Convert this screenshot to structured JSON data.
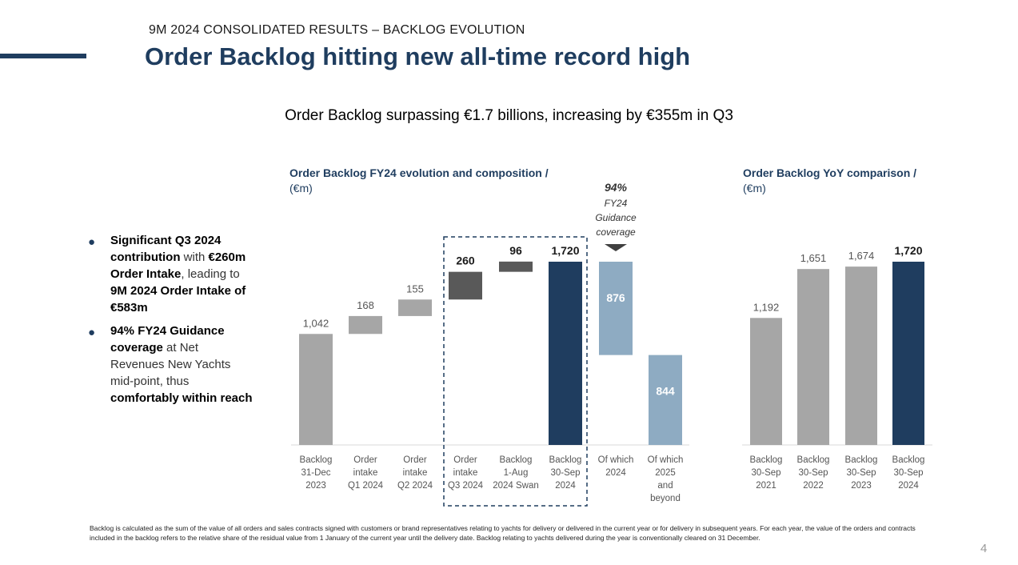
{
  "header": {
    "section_label": "9M 2024 CONSOLIDATED RESULTS – BACKLOG EVOLUTION",
    "title": "Order Backlog hitting new all-time record high",
    "subtitle": "Order Backlog surpassing €1.7 billions, increasing by €355m in Q3"
  },
  "bullets": [
    {
      "parts": [
        {
          "t": "Significant Q3 2024 contribution",
          "b": true
        },
        {
          "t": " with ",
          "b": false
        },
        {
          "t": "€260m Order Intake",
          "b": true
        },
        {
          "t": ", leading to ",
          "b": false
        },
        {
          "t": "9M 2024 Order Intake of €583m",
          "b": true
        }
      ]
    },
    {
      "parts": [
        {
          "t": "94% FY24 Guidance coverage",
          "b": true
        },
        {
          "t": " at Net Revenues New Yachts mid-point, thus ",
          "b": false
        },
        {
          "t": "comfortably within reach",
          "b": true
        }
      ]
    }
  ],
  "footnote": "Backlog is calculated as the sum of the value of all orders and sales contracts signed with customers or brand representatives relating to yachts for delivery or delivered in the current year or for delivery in subsequent years. For each year, the value of the orders and contracts included in the backlog refers to the relative share of the residual value from 1 January of the current year until the delivery date. Backlog relating to yachts delivered during the year is conventionally cleared on 31 December.",
  "page_number": "4",
  "colors": {
    "navy": "#1f3d5f",
    "grey": "#a6a6a6",
    "dark_grey": "#595959",
    "light_blue": "#8eabc2"
  },
  "chart_data": [
    {
      "type": "bar",
      "subtype": "waterfall",
      "title": "Order Backlog FY24 evolution and composition /",
      "unit": "(€m)",
      "categories": [
        "Backlog 31-Dec 2023",
        "Order intake Q1 2024",
        "Order intake Q2 2024",
        "Order intake Q3 2024",
        "Backlog 1-Aug 2024 Swan",
        "Backlog 30-Sep 2024",
        "Of which 2024",
        "Of which 2025 and beyond"
      ],
      "category_lines": [
        [
          "Backlog",
          "31-Dec",
          "2023"
        ],
        [
          "Order",
          "intake",
          "Q1 2024"
        ],
        [
          "Order",
          "intake",
          "Q2 2024"
        ],
        [
          "Order",
          "intake",
          "Q3 2024"
        ],
        [
          "Backlog",
          "1-Aug",
          "2024 Swan"
        ],
        [
          "Backlog",
          "30-Sep",
          "2024"
        ],
        [
          "Of which",
          "2024"
        ],
        [
          "Of which",
          "2025",
          "and",
          "beyond"
        ]
      ],
      "values": [
        1042,
        168,
        155,
        260,
        96,
        1720,
        876,
        844
      ],
      "value_labels": [
        "1,042",
        "168",
        "155",
        "260",
        "96",
        "1,720",
        "876",
        "844"
      ],
      "bar_kind": [
        "total",
        "delta",
        "delta",
        "delta",
        "delta",
        "total",
        "split",
        "split"
      ],
      "bar_colors": [
        "#a6a6a6",
        "#a6a6a6",
        "#a6a6a6",
        "#595959",
        "#595959",
        "#1f3d5f",
        "#8eabc2",
        "#8eabc2"
      ],
      "label_inside": [
        false,
        false,
        false,
        false,
        false,
        false,
        true,
        true
      ],
      "label_bold": [
        false,
        false,
        false,
        true,
        true,
        true,
        true,
        true
      ],
      "highlight_box_categories": [
        "Order intake Q3 2024",
        "Backlog 1-Aug 2024 Swan",
        "Backlog 30-Sep 2024"
      ],
      "callout": {
        "value": "94%",
        "lines": [
          "FY24",
          "Guidance",
          "coverage"
        ],
        "category": "Of which 2024"
      },
      "ylim": [
        0,
        1720
      ]
    },
    {
      "type": "bar",
      "title": "Order Backlog YoY comparison /",
      "unit": "(€m)",
      "categories": [
        "Backlog 30-Sep 2021",
        "Backlog 30-Sep 2022",
        "Backlog 30-Sep 2023",
        "Backlog 30-Sep 2024"
      ],
      "category_lines": [
        [
          "Backlog",
          "30-Sep",
          "2021"
        ],
        [
          "Backlog",
          "30-Sep",
          "2022"
        ],
        [
          "Backlog",
          "30-Sep",
          "2023"
        ],
        [
          "Backlog",
          "30-Sep",
          "2024"
        ]
      ],
      "values": [
        1192,
        1651,
        1674,
        1720
      ],
      "value_labels": [
        "1,192",
        "1,651",
        "1,674",
        "1,720"
      ],
      "bar_colors": [
        "#a6a6a6",
        "#a6a6a6",
        "#a6a6a6",
        "#1f3d5f"
      ],
      "label_bold": [
        false,
        false,
        false,
        true
      ],
      "ylim": [
        0,
        1720
      ]
    }
  ]
}
